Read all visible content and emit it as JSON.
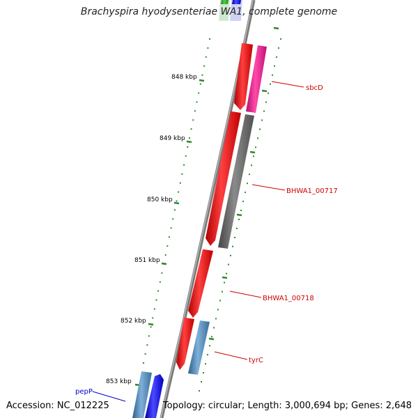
{
  "title": "Brachyspira hyodysenteriae WA1, complete genome",
  "accession": "Accession: NC_012225",
  "topology": "Topology: circular; Length: 3,000,694 bp; Genes: 2,648",
  "ticks": [
    {
      "label": "848 kbp"
    },
    {
      "label": "849 kbp"
    },
    {
      "label": "850 kbp"
    },
    {
      "label": "851 kbp"
    },
    {
      "label": "852 kbp"
    },
    {
      "label": "853 kbp"
    }
  ],
  "genes": [
    {
      "label": "sbcD",
      "color": "#cc0000"
    },
    {
      "label": "BHWA1_00717",
      "color": "#cc0000"
    },
    {
      "label": "BHWA1_00718",
      "color": "#cc0000"
    },
    {
      "label": "tyrC",
      "color": "#cc0000"
    },
    {
      "label": "pepP",
      "color": "#0000cc"
    }
  ],
  "colors": {
    "backbone": "#7a7a7a",
    "tick": "#2a8a2a",
    "cds_red": "#ff0000",
    "cds_magenta": "#ff1493",
    "cds_gray": "#606060",
    "cds_steelblue": "#4682b4",
    "cds_blue": "#0000ff",
    "cds_green": "#22aa22"
  }
}
